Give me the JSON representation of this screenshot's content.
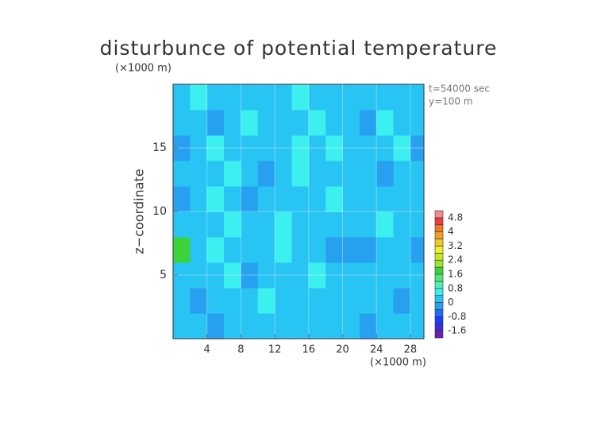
{
  "chart_data": {
    "type": "contour",
    "title": "disturbunce of potential temperature",
    "y_unit": "(×1000 m)",
    "x_unit": "(×1000 m)",
    "ylabel": "z−coordinate",
    "annotations": [
      "t=54000 sec",
      "y=100 m"
    ],
    "xlim": [
      0,
      29.6
    ],
    "ylim": [
      0,
      20
    ],
    "xticks": [
      4,
      8,
      12,
      16,
      20,
      24,
      28
    ],
    "yticks": [
      5,
      10,
      15
    ],
    "x": [
      1,
      3,
      5,
      7,
      9,
      11,
      13,
      15,
      17,
      19,
      21,
      23,
      25,
      27,
      29
    ],
    "y": [
      1,
      3,
      5,
      7,
      9,
      11,
      13,
      15,
      17,
      19
    ],
    "z": [
      [
        0.1,
        0.1,
        -0.1,
        0.1,
        0.1,
        0.1,
        0.1,
        0.1,
        0.1,
        0.1,
        0.1,
        -0.1,
        0.1,
        0.1,
        0.1
      ],
      [
        0.1,
        -0.1,
        0.1,
        0.1,
        0.1,
        0.5,
        0.1,
        0.1,
        0.1,
        0.1,
        0.1,
        0.1,
        0.1,
        -0.1,
        0.1
      ],
      [
        0.1,
        0.1,
        0.1,
        0.5,
        -0.1,
        0.1,
        0.1,
        0.1,
        0.5,
        0.1,
        0.1,
        0.1,
        0.1,
        0.1,
        0.1
      ],
      [
        1.8,
        0.1,
        0.5,
        0.1,
        0.1,
        0.1,
        0.5,
        0.1,
        0.1,
        -0.2,
        -0.3,
        -0.1,
        0.1,
        0.1,
        -0.1
      ],
      [
        0.1,
        0.1,
        0.1,
        0.5,
        0.1,
        0.1,
        0.5,
        0.1,
        0.1,
        0.1,
        0.1,
        0.1,
        0.5,
        0.1,
        0.1
      ],
      [
        -0.1,
        0.1,
        0.5,
        0.1,
        -0.1,
        0.1,
        0.1,
        0.1,
        0.1,
        0.5,
        0.1,
        0.1,
        0.1,
        0.1,
        0.1
      ],
      [
        0.1,
        0.1,
        0.1,
        0.5,
        0.1,
        -0.1,
        0.1,
        0.5,
        0.1,
        0.1,
        0.1,
        0.1,
        -0.1,
        0.1,
        0.1
      ],
      [
        -0.1,
        0.1,
        0.5,
        0.1,
        0.1,
        0.1,
        0.1,
        0.5,
        0.1,
        0.5,
        0.1,
        0.1,
        0.1,
        0.5,
        -0.1
      ],
      [
        0.1,
        0.1,
        -0.2,
        0.1,
        0.5,
        0.1,
        0.1,
        0.1,
        0.5,
        0.1,
        0.1,
        -0.1,
        0.5,
        0.1,
        0.1
      ],
      [
        0.1,
        0.5,
        0.1,
        0.1,
        0.1,
        0.1,
        0.1,
        0.5,
        0.1,
        0.1,
        0.1,
        0.1,
        0.1,
        0.1,
        0.1
      ]
    ],
    "clim": [
      -2,
      5.2
    ],
    "colors": [
      "#6e1fb4",
      "#3c2ed2",
      "#1e3cff",
      "#1e6ef0",
      "#28a0f0",
      "#28c4f4",
      "#3cf0f0",
      "#50f0b4",
      "#50e678",
      "#3cd23c",
      "#96e632",
      "#c8e628",
      "#f0f028",
      "#f0c828",
      "#f0a028",
      "#f07828",
      "#f03c3c",
      "#f08c8c"
    ],
    "cbar_ticks": [
      -1.6,
      -0.8,
      0,
      0.8,
      1.6,
      2.4,
      3.2,
      4,
      4.8
    ]
  }
}
